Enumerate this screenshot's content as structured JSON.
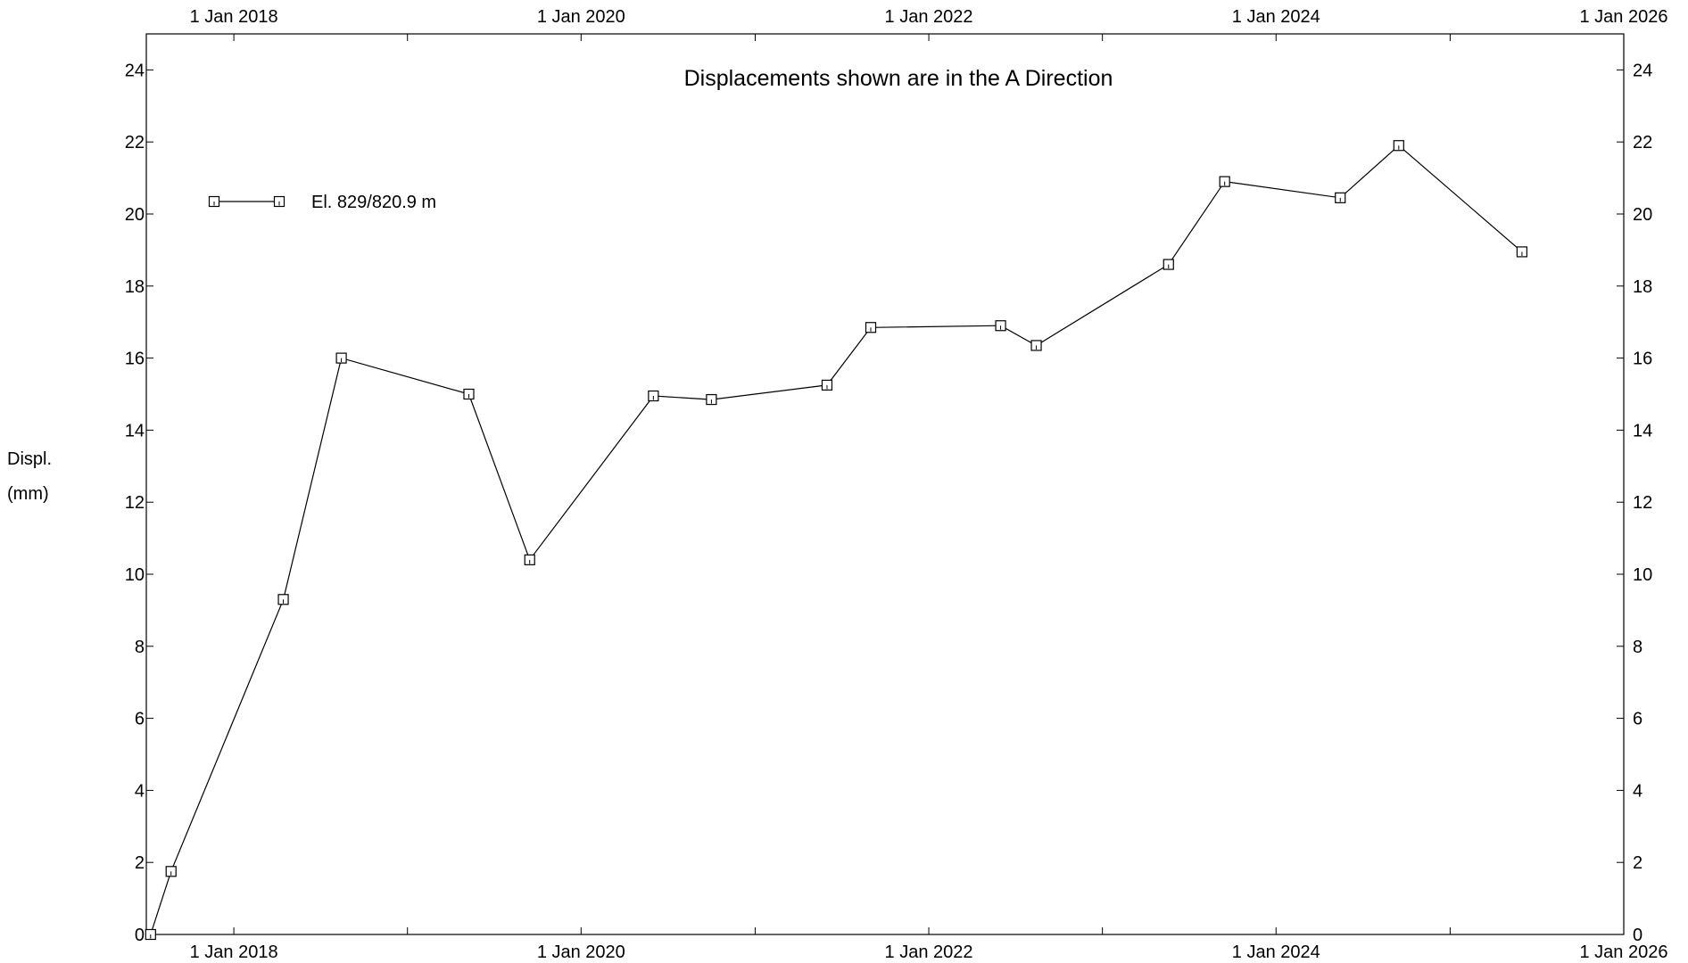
{
  "chart_data": {
    "type": "line",
    "title": "Displacements shown are in the  A Direction",
    "xlabel": "",
    "ylabel": [
      "Displ.",
      "(mm)"
    ],
    "x_axis": {
      "type": "date",
      "range": [
        "2017-07-01",
        "2026-01-01"
      ],
      "labeled_ticks": [
        {
          "date": "2018-01-01",
          "label": "1 Jan 2018"
        },
        {
          "date": "2020-01-01",
          "label": "1 Jan 2020"
        },
        {
          "date": "2022-01-01",
          "label": "1 Jan 2022"
        },
        {
          "date": "2024-01-01",
          "label": "1 Jan 2024"
        },
        {
          "date": "2026-01-01",
          "label": "1 Jan 2026"
        }
      ],
      "minor_ticks": [
        "2019-01-01",
        "2021-01-01",
        "2023-01-01",
        "2025-01-01"
      ],
      "labels_top": true,
      "labels_bottom": true
    },
    "y_axis": {
      "ylim": [
        0,
        25
      ],
      "ticks": [
        0,
        2,
        4,
        6,
        8,
        10,
        12,
        14,
        16,
        18,
        20,
        22,
        24
      ],
      "labels_left": true,
      "labels_right": true
    },
    "grid": false,
    "legend": {
      "position": "top-left"
    },
    "series": [
      {
        "name": "El. 829/820.9 m",
        "color": "#000000",
        "marker": "square",
        "points": [
          {
            "x": "2017-07-10",
            "y": 0.0
          },
          {
            "x": "2017-08-22",
            "y": 1.75
          },
          {
            "x": "2018-04-15",
            "y": 9.3
          },
          {
            "x": "2018-08-15",
            "y": 16.0
          },
          {
            "x": "2019-05-10",
            "y": 15.0
          },
          {
            "x": "2019-09-15",
            "y": 10.4
          },
          {
            "x": "2020-06-01",
            "y": 14.95
          },
          {
            "x": "2020-10-01",
            "y": 14.85
          },
          {
            "x": "2021-06-01",
            "y": 15.25
          },
          {
            "x": "2021-09-01",
            "y": 16.85
          },
          {
            "x": "2022-06-01",
            "y": 16.9
          },
          {
            "x": "2022-08-15",
            "y": 16.35
          },
          {
            "x": "2023-05-20",
            "y": 18.6
          },
          {
            "x": "2023-09-15",
            "y": 20.9
          },
          {
            "x": "2024-05-15",
            "y": 20.45
          },
          {
            "x": "2024-09-15",
            "y": 21.9
          },
          {
            "x": "2025-06-01",
            "y": 18.95
          }
        ]
      }
    ]
  }
}
